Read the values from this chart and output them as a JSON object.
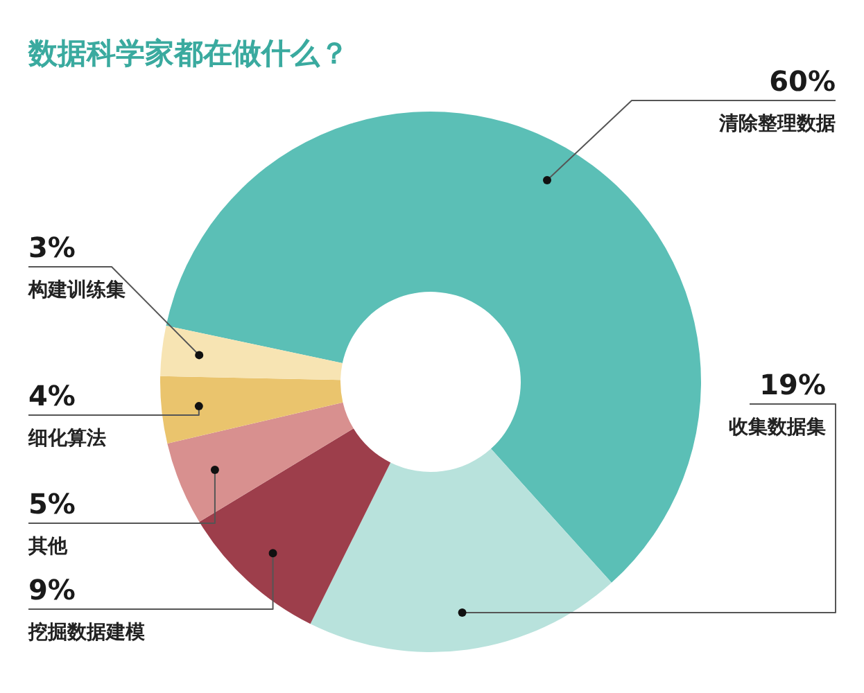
{
  "chart_data": {
    "type": "donut",
    "title": "数据科学家都在做什么？",
    "categories": [
      "清除整理数据",
      "收集数据集",
      "挖掘数据建模",
      "其他",
      "细化算法",
      "构建训练集"
    ],
    "values": [
      60,
      19,
      9,
      5,
      4,
      3
    ],
    "colors": [
      "#5bbfb6",
      "#b8e2dc",
      "#9d3e4b",
      "#d8908f",
      "#eac46d",
      "#f7e4b3"
    ],
    "value_labels": [
      "60%",
      "19%",
      "9%",
      "5%",
      "4%",
      "3%"
    ]
  }
}
